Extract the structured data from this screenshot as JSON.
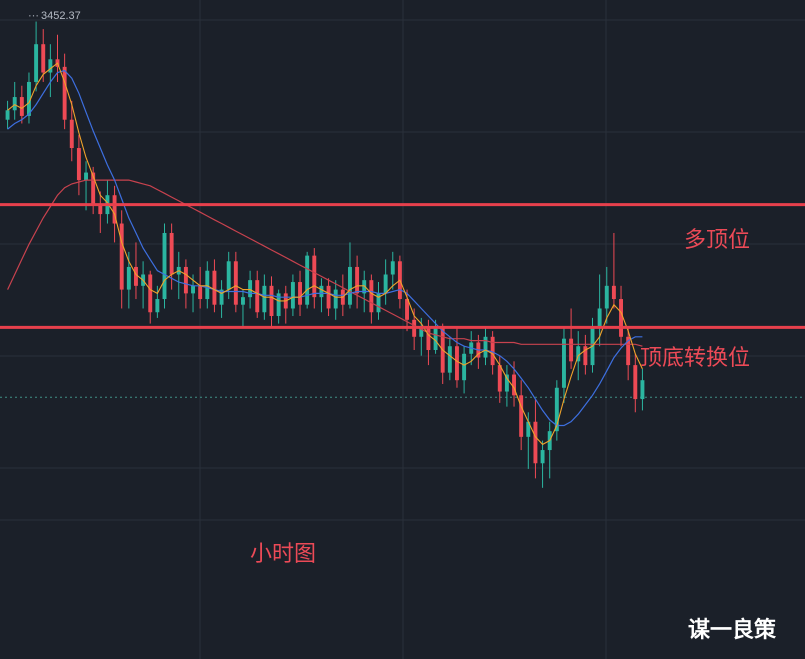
{
  "chart_data": {
    "type": "candlestick",
    "high_label": "3452.37",
    "timeframe_label": "小时图",
    "watermark": "谋一良策",
    "price_range": [
      3180,
      3456
    ],
    "horizontal_lines": [
      {
        "label": "多顶位",
        "price": 3355,
        "color": "#e8404c"
      },
      {
        "label": "顶底转换位",
        "price": 3290,
        "color": "#e8404c"
      }
    ],
    "current_price_line": 3253,
    "grid": true,
    "colors": {
      "up": "#2bb5a0",
      "down": "#ee4a55",
      "ma_fast": "#f0a32a",
      "ma_mid": "#3d6fe0",
      "ma_slow": "#c8424e",
      "background": "#1b2029",
      "grid": "#2a303b"
    },
    "candles": [
      [
        3400,
        3410,
        3395,
        3405
      ],
      [
        3405,
        3420,
        3400,
        3412
      ],
      [
        3412,
        3418,
        3398,
        3402
      ],
      [
        3402,
        3425,
        3398,
        3420
      ],
      [
        3420,
        3452,
        3415,
        3440
      ],
      [
        3440,
        3448,
        3420,
        3425
      ],
      [
        3425,
        3440,
        3412,
        3432
      ],
      [
        3432,
        3445,
        3420,
        3428
      ],
      [
        3428,
        3435,
        3395,
        3400
      ],
      [
        3400,
        3410,
        3378,
        3385
      ],
      [
        3385,
        3392,
        3360,
        3368
      ],
      [
        3368,
        3378,
        3352,
        3372
      ],
      [
        3372,
        3375,
        3350,
        3355
      ],
      [
        3355,
        3362,
        3340,
        3350
      ],
      [
        3350,
        3368,
        3345,
        3360
      ],
      [
        3360,
        3365,
        3335,
        3345
      ],
      [
        3345,
        3352,
        3300,
        3310
      ],
      [
        3310,
        3330,
        3300,
        3322
      ],
      [
        3322,
        3335,
        3305,
        3312
      ],
      [
        3312,
        3325,
        3300,
        3318
      ],
      [
        3318,
        3320,
        3292,
        3298
      ],
      [
        3298,
        3312,
        3295,
        3305
      ],
      [
        3305,
        3345,
        3300,
        3340
      ],
      [
        3340,
        3345,
        3310,
        3318
      ],
      [
        3318,
        3330,
        3305,
        3322
      ],
      [
        3322,
        3326,
        3300,
        3308
      ],
      [
        3308,
        3318,
        3298,
        3312
      ],
      [
        3312,
        3322,
        3300,
        3305
      ],
      [
        3305,
        3325,
        3300,
        3320
      ],
      [
        3320,
        3326,
        3298,
        3302
      ],
      [
        3302,
        3315,
        3295,
        3310
      ],
      [
        3310,
        3330,
        3305,
        3325
      ],
      [
        3325,
        3330,
        3298,
        3302
      ],
      [
        3302,
        3310,
        3290,
        3306
      ],
      [
        3306,
        3320,
        3300,
        3315
      ],
      [
        3315,
        3320,
        3295,
        3298
      ],
      [
        3298,
        3318,
        3294,
        3312
      ],
      [
        3312,
        3317,
        3290,
        3296
      ],
      [
        3296,
        3310,
        3292,
        3308
      ],
      [
        3308,
        3312,
        3292,
        3300
      ],
      [
        3300,
        3318,
        3296,
        3314
      ],
      [
        3314,
        3320,
        3296,
        3302
      ],
      [
        3302,
        3330,
        3300,
        3328
      ],
      [
        3328,
        3332,
        3300,
        3306
      ],
      [
        3306,
        3316,
        3298,
        3312
      ],
      [
        3312,
        3316,
        3296,
        3300
      ],
      [
        3300,
        3315,
        3294,
        3310
      ],
      [
        3310,
        3318,
        3296,
        3302
      ],
      [
        3302,
        3335,
        3300,
        3322
      ],
      [
        3322,
        3328,
        3300,
        3308
      ],
      [
        3308,
        3320,
        3298,
        3315
      ],
      [
        3315,
        3318,
        3292,
        3298
      ],
      [
        3298,
        3314,
        3294,
        3308
      ],
      [
        3308,
        3326,
        3302,
        3318
      ],
      [
        3318,
        3330,
        3310,
        3325
      ],
      [
        3325,
        3328,
        3300,
        3305
      ],
      [
        3305,
        3310,
        3288,
        3294
      ],
      [
        3294,
        3300,
        3278,
        3285
      ],
      [
        3285,
        3295,
        3275,
        3290
      ],
      [
        3290,
        3294,
        3270,
        3278
      ],
      [
        3278,
        3294,
        3276,
        3290
      ],
      [
        3290,
        3292,
        3260,
        3266
      ],
      [
        3266,
        3285,
        3262,
        3280
      ],
      [
        3280,
        3290,
        3258,
        3262
      ],
      [
        3262,
        3280,
        3255,
        3276
      ],
      [
        3276,
        3288,
        3270,
        3282
      ],
      [
        3282,
        3286,
        3268,
        3274
      ],
      [
        3274,
        3290,
        3270,
        3285
      ],
      [
        3285,
        3288,
        3265,
        3270
      ],
      [
        3270,
        3275,
        3250,
        3256
      ],
      [
        3256,
        3270,
        3248,
        3265
      ],
      [
        3265,
        3272,
        3248,
        3254
      ],
      [
        3254,
        3262,
        3225,
        3232
      ],
      [
        3232,
        3245,
        3215,
        3240
      ],
      [
        3240,
        3252,
        3210,
        3218
      ],
      [
        3218,
        3230,
        3205,
        3225
      ],
      [
        3225,
        3240,
        3210,
        3235
      ],
      [
        3235,
        3262,
        3230,
        3258
      ],
      [
        3258,
        3290,
        3250,
        3284
      ],
      [
        3284,
        3300,
        3268,
        3272
      ],
      [
        3272,
        3288,
        3262,
        3280
      ],
      [
        3280,
        3286,
        3265,
        3270
      ],
      [
        3270,
        3295,
        3266,
        3290
      ],
      [
        3290,
        3318,
        3280,
        3300
      ],
      [
        3300,
        3322,
        3292,
        3312
      ],
      [
        3312,
        3340,
        3300,
        3305
      ],
      [
        3305,
        3312,
        3280,
        3285
      ],
      [
        3285,
        3290,
        3262,
        3270
      ],
      [
        3270,
        3276,
        3245,
        3252
      ],
      [
        3252,
        3268,
        3246,
        3262
      ]
    ],
    "ma_fast": [
      3405,
      3408,
      3406,
      3409,
      3418,
      3424,
      3427,
      3430,
      3420,
      3408,
      3393,
      3380,
      3370,
      3360,
      3356,
      3350,
      3335,
      3325,
      3318,
      3315,
      3310,
      3308,
      3315,
      3318,
      3320,
      3318,
      3315,
      3312,
      3312,
      3310,
      3308,
      3310,
      3312,
      3310,
      3310,
      3308,
      3306,
      3306,
      3304,
      3304,
      3306,
      3306,
      3310,
      3312,
      3310,
      3308,
      3306,
      3306,
      3310,
      3312,
      3312,
      3308,
      3306,
      3308,
      3312,
      3315,
      3306,
      3296,
      3292,
      3286,
      3283,
      3278,
      3275,
      3272,
      3270,
      3272,
      3276,
      3278,
      3276,
      3270,
      3263,
      3258,
      3248,
      3240,
      3232,
      3228,
      3230,
      3238,
      3252,
      3264,
      3275,
      3278,
      3280,
      3285,
      3295,
      3302,
      3298,
      3288,
      3276,
      3268
    ],
    "ma_mid": [
      3395,
      3398,
      3400,
      3403,
      3408,
      3414,
      3420,
      3425,
      3426,
      3422,
      3414,
      3404,
      3394,
      3385,
      3376,
      3368,
      3358,
      3348,
      3340,
      3332,
      3326,
      3320,
      3318,
      3316,
      3314,
      3313,
      3312,
      3312,
      3311,
      3310,
      3309,
      3309,
      3309,
      3309,
      3308,
      3308,
      3307,
      3307,
      3306,
      3306,
      3306,
      3306,
      3307,
      3308,
      3308,
      3308,
      3307,
      3307,
      3308,
      3309,
      3309,
      3309,
      3308,
      3308,
      3309,
      3310,
      3308,
      3304,
      3300,
      3296,
      3292,
      3288,
      3285,
      3282,
      3280,
      3279,
      3278,
      3278,
      3277,
      3275,
      3272,
      3268,
      3263,
      3258,
      3252,
      3246,
      3241,
      3238,
      3238,
      3240,
      3244,
      3249,
      3254,
      3260,
      3267,
      3274,
      3279,
      3283,
      3285,
      3285
    ],
    "ma_slow": [
      3310,
      3318,
      3326,
      3334,
      3341,
      3348,
      3354,
      3360,
      3364,
      3366,
      3367,
      3368,
      3368,
      3368,
      3368,
      3368,
      3368,
      3368,
      3367,
      3366,
      3365,
      3363,
      3361,
      3359,
      3357,
      3355,
      3353,
      3351,
      3349,
      3347,
      3345,
      3343,
      3341,
      3339,
      3337,
      3335,
      3333,
      3331,
      3329,
      3327,
      3325,
      3323,
      3321,
      3319,
      3317,
      3315,
      3313,
      3311,
      3309,
      3307,
      3305,
      3303,
      3301,
      3299,
      3297,
      3295,
      3293,
      3291,
      3289,
      3287,
      3286,
      3285,
      3284,
      3284,
      3284,
      3283,
      3283,
      3283,
      3282,
      3282,
      3282,
      3282,
      3281,
      3281,
      3281,
      3281,
      3281,
      3281,
      3281,
      3281,
      3281,
      3281,
      3281,
      3281,
      3281,
      3281,
      3281,
      3281,
      3281,
      3280
    ]
  }
}
